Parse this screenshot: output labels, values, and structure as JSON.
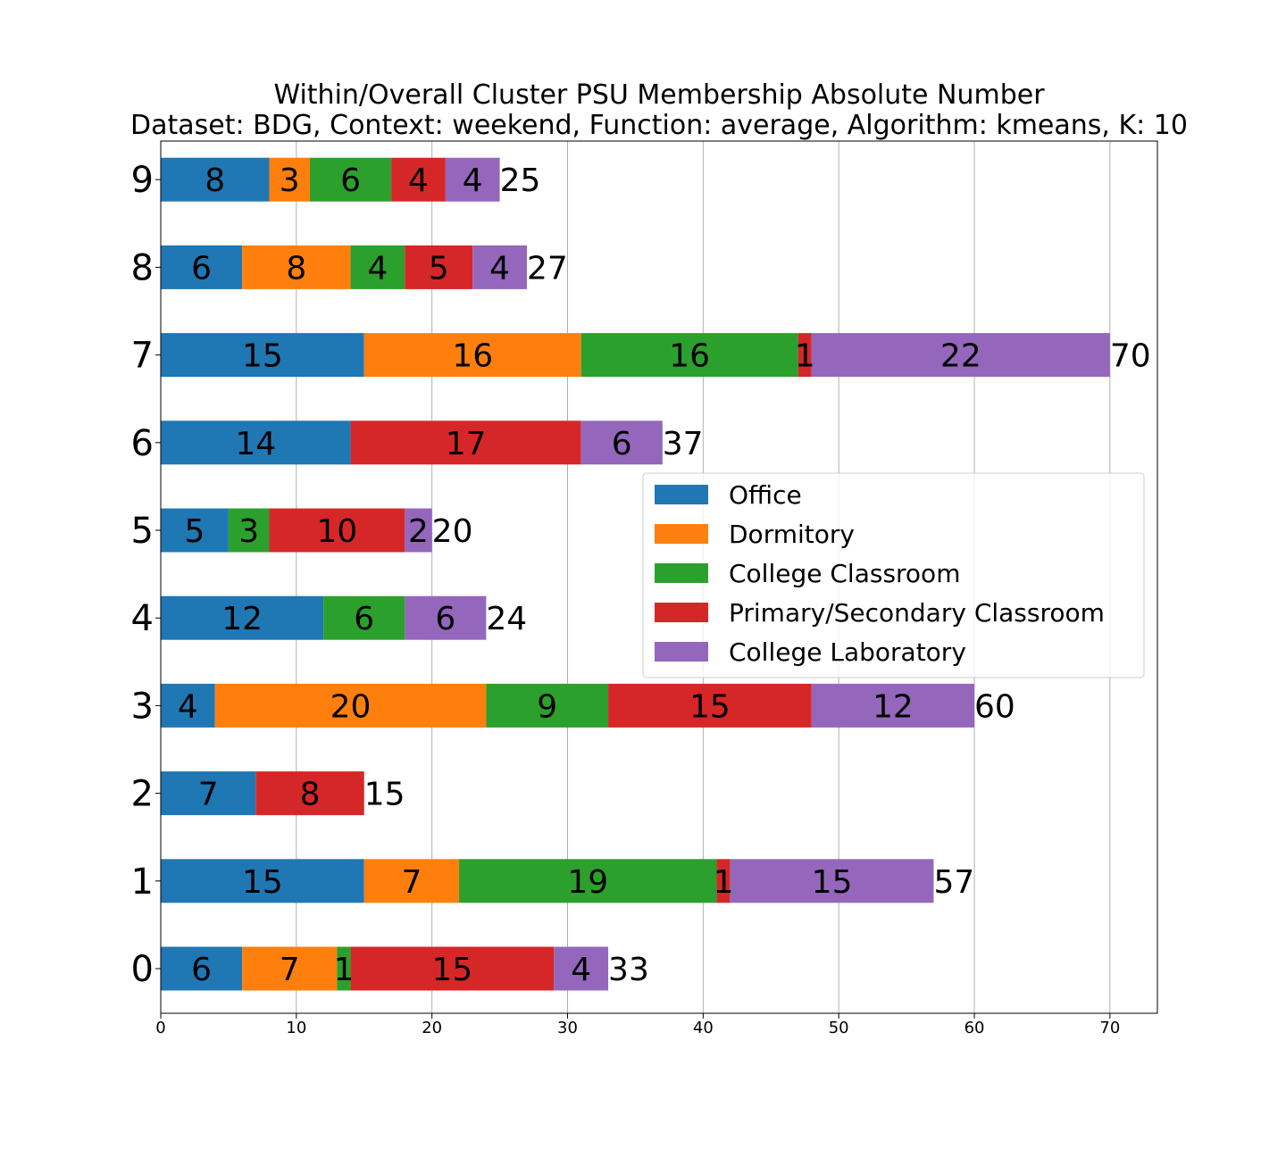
{
  "chart_data": {
    "type": "bar",
    "orientation": "horizontal",
    "stacked": true,
    "title": "Within/Overall Cluster PSU Membership Absolute Number",
    "subtitle": "Dataset: BDG, Context: weekend, Function: average, Algorithm: kmeans, K: 10",
    "xlabel": "",
    "ylabel": "",
    "categories": [
      "0",
      "1",
      "2",
      "3",
      "4",
      "5",
      "6",
      "7",
      "8",
      "9"
    ],
    "xlim": [
      0,
      73.5
    ],
    "xticks": [
      0,
      10,
      20,
      30,
      40,
      50,
      60,
      70
    ],
    "grid": "x",
    "legend_position": "center-right",
    "series": [
      {
        "name": "Office",
        "color": "#1f77b4",
        "values": [
          6,
          15,
          7,
          4,
          12,
          5,
          14,
          15,
          6,
          8
        ]
      },
      {
        "name": "Dormitory",
        "color": "#ff7f0e",
        "values": [
          7,
          7,
          0,
          20,
          0,
          0,
          0,
          16,
          8,
          3
        ]
      },
      {
        "name": "College Classroom",
        "color": "#2ca02c",
        "values": [
          1,
          19,
          0,
          9,
          6,
          3,
          0,
          16,
          4,
          6
        ]
      },
      {
        "name": "Primary/Secondary Classroom",
        "color": "#d62728",
        "values": [
          15,
          1,
          8,
          15,
          0,
          10,
          17,
          1,
          5,
          4
        ]
      },
      {
        "name": "College Laboratory",
        "color": "#9467bd",
        "values": [
          4,
          15,
          0,
          12,
          6,
          2,
          6,
          22,
          4,
          4
        ]
      }
    ],
    "totals": [
      33,
      57,
      15,
      60,
      24,
      20,
      37,
      70,
      27,
      25
    ]
  }
}
